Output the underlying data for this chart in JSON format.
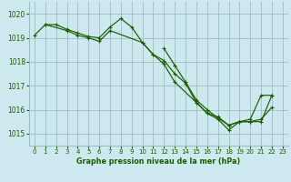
{
  "background_color": "#cde8ee",
  "grid_color": "#9bbfbf",
  "line_color": "#1a5c00",
  "marker_color": "#1a5c00",
  "title": "Graphe pression niveau de la mer (hPa)",
  "xlim": [
    -0.5,
    23.5
  ],
  "ylim": [
    1014.5,
    1020.5
  ],
  "xticks": [
    0,
    1,
    2,
    3,
    4,
    5,
    6,
    7,
    8,
    9,
    10,
    11,
    12,
    13,
    14,
    15,
    16,
    17,
    18,
    19,
    20,
    21,
    22,
    23
  ],
  "yticks": [
    1015,
    1016,
    1017,
    1018,
    1019,
    1020
  ],
  "series": [
    {
      "points": [
        [
          0,
          1019.1
        ],
        [
          1,
          1019.55
        ],
        [
          2,
          1019.55
        ],
        [
          3,
          1019.35
        ],
        [
          4,
          1019.2
        ],
        [
          5,
          1019.05
        ],
        [
          6,
          1019.0
        ],
        [
          7,
          1019.45
        ],
        [
          8,
          1019.8
        ],
        [
          9,
          1019.45
        ],
        [
          10,
          1018.8
        ],
        [
          11,
          1018.3
        ],
        [
          12,
          1018.05
        ],
        [
          13,
          1017.5
        ],
        [
          14,
          1017.1
        ],
        [
          15,
          1016.3
        ],
        [
          16,
          1015.85
        ],
        [
          17,
          1015.6
        ],
        [
          18,
          1015.15
        ],
        [
          19,
          1015.5
        ],
        [
          20,
          1015.5
        ],
        [
          21,
          1015.5
        ],
        [
          22,
          1016.6
        ]
      ]
    },
    {
      "points": [
        [
          1,
          1019.55
        ],
        [
          3,
          1019.3
        ],
        [
          4,
          1019.1
        ],
        [
          5,
          1019.0
        ],
        [
          6,
          1018.85
        ],
        [
          7,
          1019.3
        ],
        [
          10,
          1018.8
        ],
        [
          11,
          1018.3
        ],
        [
          12,
          1017.9
        ],
        [
          13,
          1017.15
        ],
        [
          15,
          1016.3
        ],
        [
          16,
          1015.85
        ],
        [
          17,
          1015.7
        ],
        [
          18,
          1015.35
        ],
        [
          19,
          1015.5
        ],
        [
          20,
          1015.5
        ],
        [
          21,
          1015.6
        ],
        [
          22,
          1016.1
        ]
      ]
    },
    {
      "points": [
        [
          12,
          1018.55
        ],
        [
          13,
          1017.85
        ],
        [
          14,
          1017.15
        ],
        [
          15,
          1016.4
        ],
        [
          16,
          1016.0
        ],
        [
          17,
          1015.65
        ],
        [
          18,
          1015.35
        ],
        [
          19,
          1015.5
        ],
        [
          20,
          1015.6
        ],
        [
          21,
          1016.6
        ],
        [
          22,
          1016.6
        ]
      ]
    }
  ]
}
